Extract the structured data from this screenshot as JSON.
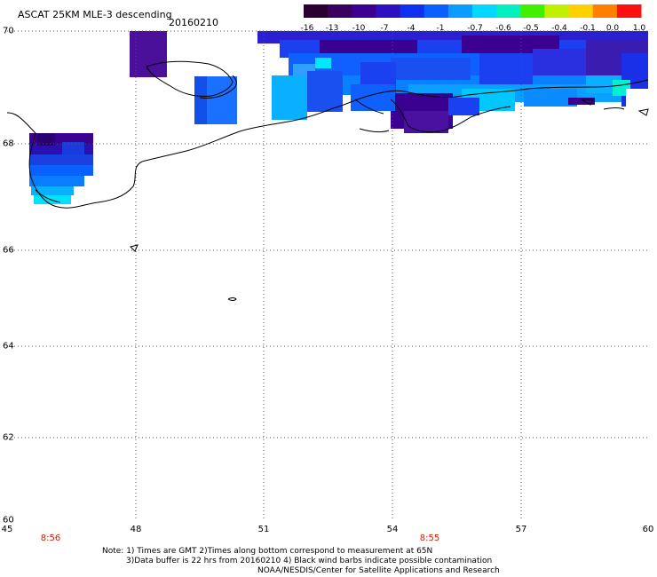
{
  "header": {
    "title": "ASCAT 25KM MLE-3 descending",
    "date": "20160210"
  },
  "colorbar": {
    "labels": [
      "-16",
      "-13",
      "-10",
      "-7",
      "-4",
      "-1",
      "-0.7",
      "-0.6",
      "-0.5",
      "-0.4",
      "-0.1",
      "0.0",
      "1.0"
    ],
    "colors": [
      "#2a0030",
      "#3a0060",
      "#3c0090",
      "#2e10c0",
      "#1030f0",
      "#0a60ff",
      "#0a9cff",
      "#00d8ff",
      "#00f0c0",
      "#40f000",
      "#c0f000",
      "#ffd000",
      "#ff8000",
      "#ff1010"
    ]
  },
  "axes": {
    "lat_labels": [
      "70",
      "68",
      "66",
      "64",
      "62",
      "60"
    ],
    "lon_labels": [
      "45",
      "48",
      "51",
      "54",
      "57",
      "60"
    ]
  },
  "times": [
    "8:56",
    "8:55"
  ],
  "notes": {
    "line1": "Note: 1) Times are GMT 2)Times along bottom correspond to measurement at 65N",
    "line2": "3)Data buffer is 22 hrs from 20160210 4) Black wind barbs indicate possible contamination",
    "line3": "NOAA/NESDIS/Center for Satellite Applications and Research"
  }
}
